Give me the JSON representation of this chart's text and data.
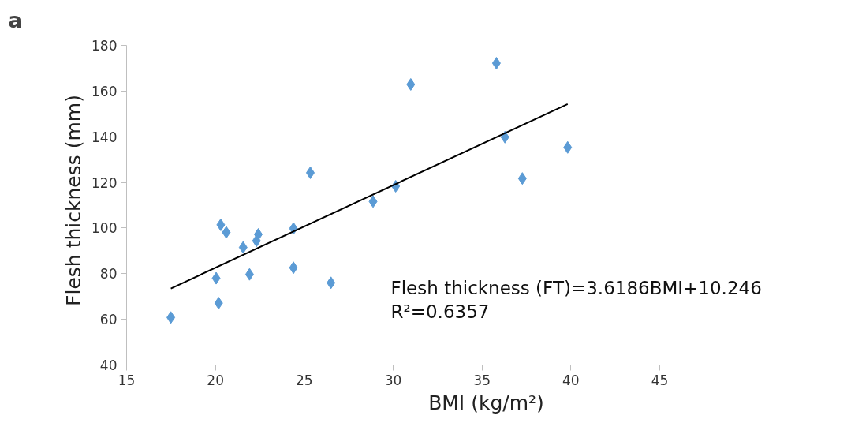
{
  "chart_data": {
    "type": "scatter",
    "xlabel": "BMI (kg/m²)",
    "ylabel": "Flesh thickness (mm)",
    "annotations": [
      "a",
      "Flesh thickness (FT)=3.6186BMI+10.246",
      "R²=0.6357"
    ],
    "xlim": [
      15,
      45
    ],
    "xticks": [
      15,
      20,
      25,
      30,
      35,
      40,
      45
    ],
    "ylim": [
      40,
      180
    ],
    "yticks": [
      40,
      60,
      80,
      100,
      120,
      140,
      160,
      180
    ],
    "grid": false,
    "marker": "diamond",
    "series": [
      {
        "type": "scatter",
        "color": "#5b9bd5",
        "x": [
          17.49,
          20.18,
          20.04,
          20.3,
          20.61,
          21.56,
          21.92,
          22.31,
          22.41,
          24.39,
          24.39,
          25.34,
          26.5,
          28.87,
          30.14,
          30.99,
          35.81,
          36.29,
          37.27,
          39.82
        ],
        "values": [
          60.8,
          67.1,
          78.0,
          101.4,
          98.1,
          91.5,
          79.7,
          94.4,
          97.2,
          99.8,
          82.6,
          124.2,
          76.0,
          111.6,
          118.3,
          162.9,
          172.2,
          139.8,
          121.7,
          135.3
        ]
      },
      {
        "type": "line",
        "marker": "none",
        "color": "#000000",
        "x": [
          17.49,
          39.82
        ],
        "values": [
          73.5,
          154.3
        ]
      }
    ]
  }
}
